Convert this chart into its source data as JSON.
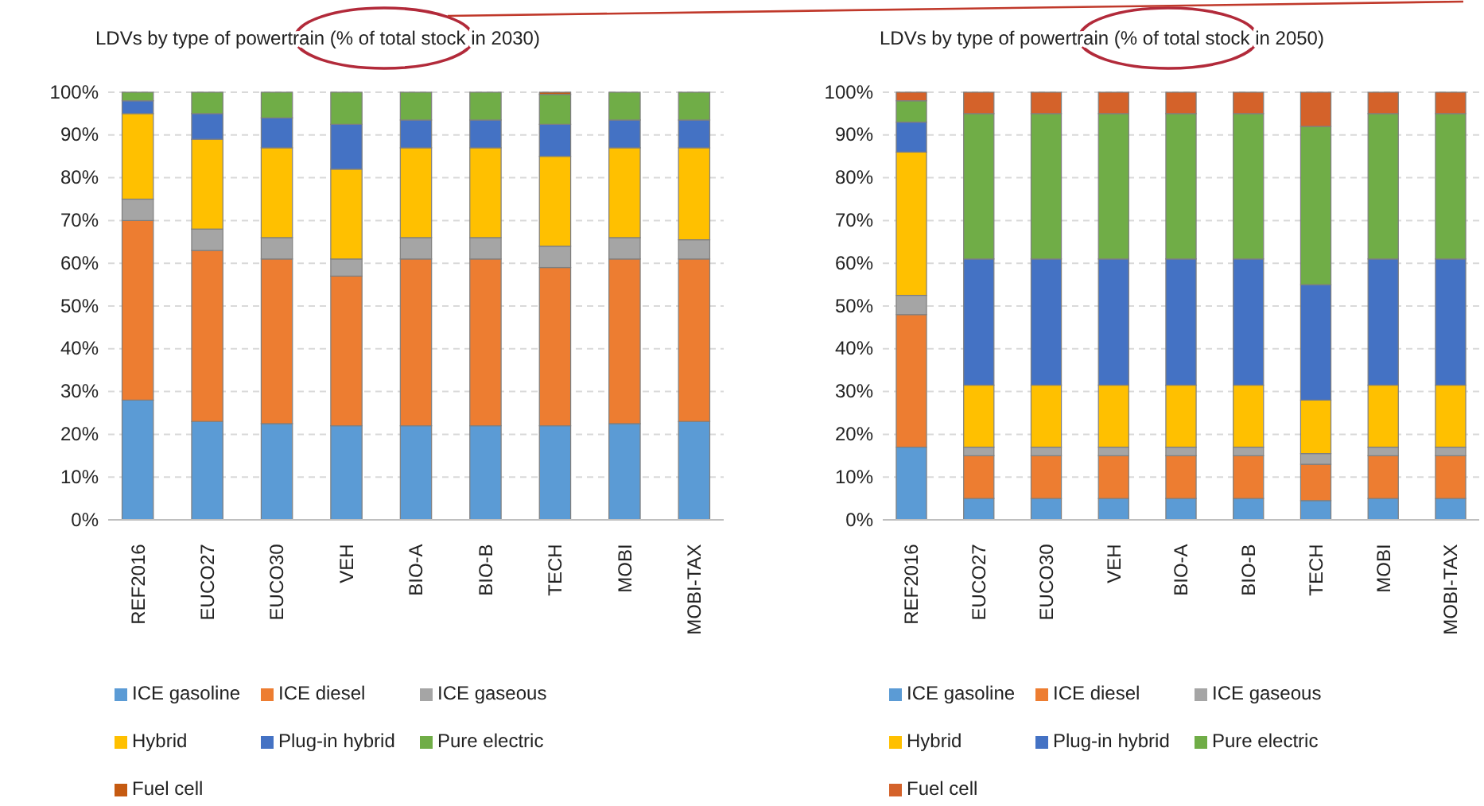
{
  "chart_data": [
    {
      "type": "bar",
      "stacked": true,
      "title": "LDVs by type of powertrain (% of total stock in 2030)",
      "categories": [
        "REF2016",
        "EUCO27",
        "EUCO30",
        "VEH",
        "BIO-A",
        "BIO-B",
        "TECH",
        "MOBI",
        "MOBI-TAX"
      ],
      "ylim": [
        0,
        100
      ],
      "yticks": [
        {
          "value": 0,
          "label": "0%"
        },
        {
          "value": 10,
          "label": "10%"
        },
        {
          "value": 20,
          "label": "20%"
        },
        {
          "value": 30,
          "label": "30%"
        },
        {
          "value": 40,
          "label": "40%"
        },
        {
          "value": 50,
          "label": "50%"
        },
        {
          "value": 60,
          "label": "60%"
        },
        {
          "value": 70,
          "label": "70%"
        },
        {
          "value": 80,
          "label": "80%"
        },
        {
          "value": 90,
          "label": "90%"
        },
        {
          "value": 100,
          "label": "100%"
        }
      ],
      "grid": "y",
      "legend": "bottom",
      "series": [
        {
          "name": "ICE gasoline",
          "color": "#5b9bd5",
          "values": [
            28,
            23,
            22.5,
            22,
            22,
            22,
            22,
            22.5,
            23
          ]
        },
        {
          "name": "ICE diesel",
          "color": "#ed7d31",
          "values": [
            42,
            40,
            38.5,
            35,
            39,
            39,
            37,
            38.5,
            38
          ]
        },
        {
          "name": "ICE gaseous",
          "color": "#a5a5a5",
          "values": [
            5,
            5,
            5,
            4,
            5,
            5,
            5,
            5,
            4.5
          ]
        },
        {
          "name": "Hybrid",
          "color": "#ffc000",
          "values": [
            20,
            21,
            21,
            21,
            21,
            21,
            21,
            21,
            21.5
          ]
        },
        {
          "name": "Plug-in hybrid",
          "color": "#4472c4",
          "values": [
            3,
            6,
            7,
            10.5,
            6.5,
            6.5,
            7.5,
            6.5,
            6.5
          ]
        },
        {
          "name": "Pure electric",
          "color": "#70ad47",
          "values": [
            2,
            5,
            6,
            7.5,
            6.5,
            6.5,
            7,
            6.5,
            6.5
          ]
        },
        {
          "name": "Fuel cell",
          "color": "#c55a11",
          "values": [
            0,
            0,
            0,
            0,
            0,
            0,
            0.5,
            0,
            0
          ]
        }
      ]
    },
    {
      "type": "bar",
      "stacked": true,
      "title": "LDVs by type of powertrain (% of total stock in 2050)",
      "categories": [
        "REF2016",
        "EUCO27",
        "EUCO30",
        "VEH",
        "BIO-A",
        "BIO-B",
        "TECH",
        "MOBI",
        "MOBI-TAX"
      ],
      "ylim": [
        0,
        100
      ],
      "yticks": [
        {
          "value": 0,
          "label": "0%"
        },
        {
          "value": 10,
          "label": "10%"
        },
        {
          "value": 20,
          "label": "20%"
        },
        {
          "value": 30,
          "label": "30%"
        },
        {
          "value": 40,
          "label": "40%"
        },
        {
          "value": 50,
          "label": "50%"
        },
        {
          "value": 60,
          "label": "60%"
        },
        {
          "value": 70,
          "label": "70%"
        },
        {
          "value": 80,
          "label": "80%"
        },
        {
          "value": 90,
          "label": "90%"
        },
        {
          "value": 100,
          "label": "100%"
        }
      ],
      "grid": "y",
      "legend": "bottom",
      "series": [
        {
          "name": "ICE gasoline",
          "color": "#5b9bd5",
          "values": [
            17,
            5,
            5,
            5,
            5,
            5,
            4.5,
            5,
            5
          ]
        },
        {
          "name": "ICE diesel",
          "color": "#ed7d31",
          "values": [
            31,
            10,
            10,
            10,
            10,
            10,
            8.5,
            10,
            10
          ]
        },
        {
          "name": "ICE gaseous",
          "color": "#a5a5a5",
          "values": [
            4.5,
            2,
            2,
            2,
            2,
            2,
            2.5,
            2,
            2
          ]
        },
        {
          "name": "Hybrid",
          "color": "#ffc000",
          "values": [
            33.5,
            14.5,
            14.5,
            14.5,
            14.5,
            14.5,
            12.5,
            14.5,
            14.5
          ]
        },
        {
          "name": "Plug-in hybrid",
          "color": "#4472c4",
          "values": [
            7,
            29.5,
            29.5,
            29.5,
            29.5,
            29.5,
            27,
            29.5,
            29.5
          ]
        },
        {
          "name": "Pure electric",
          "color": "#70ad47",
          "values": [
            5,
            34,
            34,
            34,
            34,
            34,
            37,
            34,
            34
          ]
        },
        {
          "name": "Fuel cell",
          "color": "#d4622a",
          "values": [
            2,
            5,
            5,
            5,
            5,
            5,
            8,
            5,
            5
          ]
        }
      ]
    }
  ]
}
